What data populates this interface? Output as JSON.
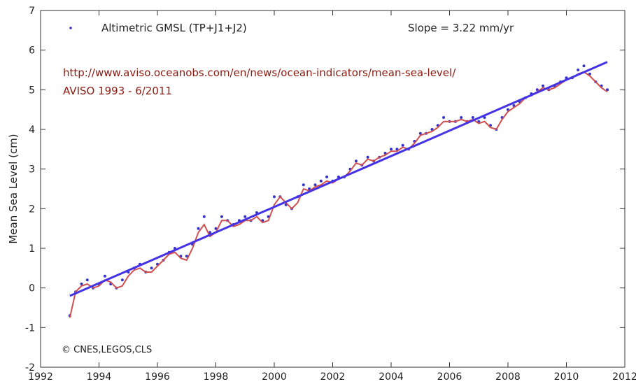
{
  "chart_data": {
    "type": "line",
    "ylabel": "Mean Sea Level (cm)",
    "xlabel": "",
    "xlim": [
      1992,
      2012
    ],
    "ylim": [
      -2,
      7
    ],
    "x_ticks": [
      1992,
      1994,
      1996,
      1998,
      2000,
      2002,
      2004,
      2006,
      2008,
      2010,
      2012
    ],
    "y_ticks": [
      -2,
      -1,
      0,
      1,
      2,
      3,
      4,
      5,
      6,
      7
    ],
    "grid": false,
    "legend": {
      "position": "top-left",
      "entries": [
        "Altimetric GMSL (TP+J1+J2)"
      ]
    },
    "annotations": {
      "slope": "Slope = 3.22 mm/yr",
      "url": "http://www.aviso.oceanobs.com/en/news/ocean-indicators/mean-sea-level/",
      "period": "AVISO 1993 - 6/2011",
      "credit": "© CNES,LEGOS,CLS"
    },
    "series": [
      {
        "name": "Altimetric GMSL (TP+J1+J2)",
        "kind": "scatter",
        "color": "#3333cc",
        "x": [
          1993.0,
          1993.2,
          1993.4,
          1993.6,
          1993.8,
          1994.0,
          1994.2,
          1994.4,
          1994.6,
          1994.8,
          1995.0,
          1995.2,
          1995.4,
          1995.6,
          1995.8,
          1996.0,
          1996.2,
          1996.4,
          1996.6,
          1996.8,
          1997.0,
          1997.2,
          1997.4,
          1997.6,
          1997.8,
          1998.0,
          1998.2,
          1998.4,
          1998.6,
          1998.8,
          1999.0,
          1999.2,
          1999.4,
          1999.6,
          1999.8,
          2000.0,
          2000.2,
          2000.4,
          2000.6,
          2000.8,
          2001.0,
          2001.2,
          2001.4,
          2001.6,
          2001.8,
          2002.0,
          2002.2,
          2002.4,
          2002.6,
          2002.8,
          2003.0,
          2003.2,
          2003.4,
          2003.6,
          2003.8,
          2004.0,
          2004.2,
          2004.4,
          2004.6,
          2004.8,
          2005.0,
          2005.2,
          2005.4,
          2005.6,
          2005.8,
          2006.0,
          2006.2,
          2006.4,
          2006.6,
          2006.8,
          2007.0,
          2007.2,
          2007.4,
          2007.6,
          2007.8,
          2008.0,
          2008.2,
          2008.4,
          2008.6,
          2008.8,
          2009.0,
          2009.2,
          2009.4,
          2009.6,
          2009.8,
          2010.0,
          2010.2,
          2010.4,
          2010.6,
          2010.8,
          2011.0,
          2011.2,
          2011.4
        ],
        "y": [
          -0.7,
          -0.1,
          0.1,
          0.2,
          0.0,
          0.1,
          0.3,
          0.1,
          0.0,
          0.2,
          0.4,
          0.5,
          0.6,
          0.4,
          0.5,
          0.6,
          0.7,
          0.9,
          1.0,
          0.8,
          0.8,
          1.1,
          1.5,
          1.8,
          1.4,
          1.5,
          1.8,
          1.7,
          1.6,
          1.7,
          1.8,
          1.7,
          1.9,
          1.7,
          1.8,
          2.3,
          2.3,
          2.1,
          2.0,
          2.3,
          2.6,
          2.5,
          2.6,
          2.7,
          2.8,
          2.7,
          2.8,
          2.8,
          3.0,
          3.2,
          3.1,
          3.3,
          3.2,
          3.3,
          3.4,
          3.5,
          3.5,
          3.6,
          3.5,
          3.7,
          3.9,
          3.9,
          4.0,
          4.1,
          4.3,
          4.2,
          4.2,
          4.3,
          4.2,
          4.3,
          4.2,
          4.3,
          4.1,
          4.0,
          4.3,
          4.5,
          4.6,
          4.7,
          4.8,
          4.9,
          5.0,
          5.1,
          5.0,
          5.1,
          5.2,
          5.3,
          5.3,
          5.5,
          5.6,
          5.4,
          5.2,
          5.1,
          5.0
        ]
      },
      {
        "name": "",
        "kind": "line",
        "color": "#d05050",
        "x": [
          1993.0,
          1993.2,
          1993.4,
          1993.6,
          1993.8,
          1994.0,
          1994.2,
          1994.4,
          1994.6,
          1994.8,
          1995.0,
          1995.2,
          1995.4,
          1995.6,
          1995.8,
          1996.0,
          1996.2,
          1996.4,
          1996.6,
          1996.8,
          1997.0,
          1997.2,
          1997.4,
          1997.6,
          1997.8,
          1998.0,
          1998.2,
          1998.4,
          1998.6,
          1998.8,
          1999.0,
          1999.2,
          1999.4,
          1999.6,
          1999.8,
          2000.0,
          2000.2,
          2000.4,
          2000.6,
          2000.8,
          2001.0,
          2001.2,
          2001.4,
          2001.6,
          2001.8,
          2002.0,
          2002.2,
          2002.4,
          2002.6,
          2002.8,
          2003.0,
          2003.2,
          2003.4,
          2003.6,
          2003.8,
          2004.0,
          2004.2,
          2004.4,
          2004.6,
          2004.8,
          2005.0,
          2005.2,
          2005.4,
          2005.6,
          2005.8,
          2006.0,
          2006.2,
          2006.4,
          2006.6,
          2006.8,
          2007.0,
          2007.2,
          2007.4,
          2007.6,
          2007.8,
          2008.0,
          2008.2,
          2008.4,
          2008.6,
          2008.8,
          2009.0,
          2009.2,
          2009.4,
          2009.6,
          2009.8,
          2010.0,
          2010.2,
          2010.4,
          2010.6,
          2010.8,
          2011.0,
          2011.2,
          2011.4
        ],
        "y": [
          -0.75,
          -0.1,
          0.05,
          0.1,
          0.0,
          0.05,
          0.2,
          0.15,
          0.0,
          0.05,
          0.3,
          0.45,
          0.5,
          0.4,
          0.4,
          0.55,
          0.7,
          0.85,
          0.9,
          0.75,
          0.7,
          1.0,
          1.4,
          1.6,
          1.3,
          1.4,
          1.7,
          1.7,
          1.55,
          1.6,
          1.7,
          1.7,
          1.8,
          1.65,
          1.7,
          2.1,
          2.3,
          2.15,
          2.0,
          2.15,
          2.5,
          2.45,
          2.55,
          2.6,
          2.7,
          2.65,
          2.75,
          2.8,
          2.95,
          3.15,
          3.1,
          3.25,
          3.2,
          3.3,
          3.35,
          3.45,
          3.45,
          3.55,
          3.5,
          3.65,
          3.85,
          3.9,
          3.95,
          4.05,
          4.2,
          4.2,
          4.2,
          4.25,
          4.2,
          4.25,
          4.15,
          4.2,
          4.05,
          4.0,
          4.25,
          4.45,
          4.55,
          4.65,
          4.8,
          4.85,
          4.95,
          5.05,
          5.0,
          5.05,
          5.15,
          5.25,
          5.3,
          5.4,
          5.45,
          5.35,
          5.2,
          5.05,
          4.95
        ]
      },
      {
        "name": "",
        "kind": "trend",
        "color": "#4433e6",
        "x": [
          1993.0,
          2011.4
        ],
        "y": [
          -0.2,
          5.7
        ]
      }
    ]
  }
}
